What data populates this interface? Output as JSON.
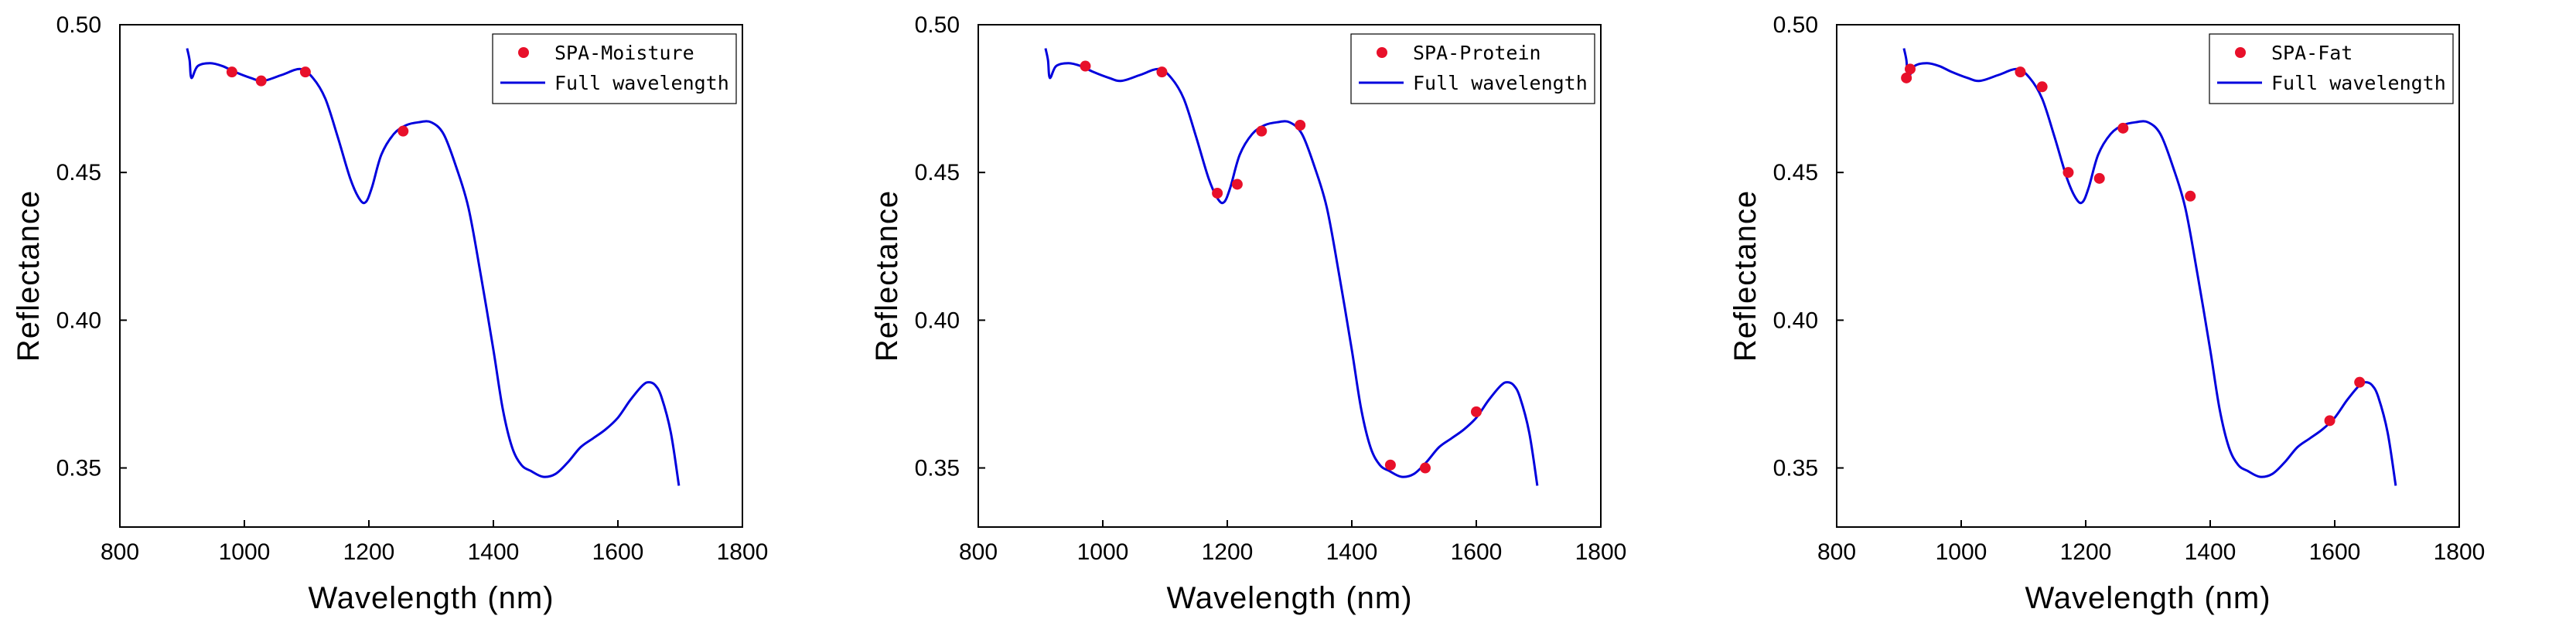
{
  "chart_data": [
    {
      "type": "line",
      "title": "",
      "xlabel": "Wavelength (nm)",
      "ylabel": "Reflectance",
      "xlim": [
        800,
        1800
      ],
      "ylim": [
        0.33,
        0.5
      ],
      "xticks": [
        800,
        1000,
        1200,
        1400,
        1600,
        1800
      ],
      "xtick_labels": [
        "800",
        "1000",
        "1200",
        "1400",
        "1600",
        "1800"
      ],
      "yticks": [
        0.35,
        0.4,
        0.45,
        0.5
      ],
      "ytick_labels": [
        "0.35",
        "0.40",
        "0.45",
        "0.50"
      ],
      "legend_position": "top-right",
      "series": [
        {
          "name": "Full wavelength",
          "kind": "line",
          "color": "#0000dd",
          "x": [
            908,
            912,
            915,
            925,
            945,
            965,
            985,
            1010,
            1030,
            1060,
            1090,
            1110,
            1130,
            1150,
            1170,
            1185,
            1195,
            1205,
            1220,
            1240,
            1260,
            1280,
            1300,
            1320,
            1340,
            1360,
            1380,
            1400,
            1415,
            1430,
            1445,
            1460,
            1480,
            1500,
            1520,
            1540,
            1560,
            1580,
            1600,
            1620,
            1640,
            1650,
            1660,
            1670,
            1685,
            1698
          ],
          "y": [
            0.492,
            0.488,
            0.482,
            0.486,
            0.487,
            0.486,
            0.484,
            0.482,
            0.481,
            0.483,
            0.485,
            0.482,
            0.475,
            0.462,
            0.448,
            0.441,
            0.44,
            0.445,
            0.456,
            0.463,
            0.466,
            0.467,
            0.467,
            0.463,
            0.452,
            0.438,
            0.415,
            0.39,
            0.37,
            0.357,
            0.351,
            0.349,
            0.347,
            0.348,
            0.352,
            0.357,
            0.36,
            0.363,
            0.367,
            0.373,
            0.378,
            0.379,
            0.378,
            0.374,
            0.362,
            0.344
          ]
        },
        {
          "name": "SPA-Moisture",
          "kind": "scatter",
          "color": "#e8102a",
          "x": [
            980,
            1027,
            1098,
            1255
          ],
          "y": [
            0.484,
            0.481,
            0.484,
            0.464
          ]
        }
      ]
    },
    {
      "type": "line",
      "title": "",
      "xlabel": "Wavelength (nm)",
      "ylabel": "Reflectance",
      "xlim": [
        800,
        1800
      ],
      "ylim": [
        0.33,
        0.5
      ],
      "xticks": [
        800,
        1000,
        1200,
        1400,
        1600,
        1800
      ],
      "xtick_labels": [
        "800",
        "1000",
        "1200",
        "1400",
        "1600",
        "1800"
      ],
      "yticks": [
        0.35,
        0.4,
        0.45,
        0.5
      ],
      "ytick_labels": [
        "0.35",
        "0.40",
        "0.45",
        "0.50"
      ],
      "legend_position": "top-right",
      "series": [
        {
          "name": "Full wavelength",
          "kind": "line",
          "color": "#0000dd",
          "x": [
            908,
            912,
            915,
            925,
            945,
            965,
            985,
            1010,
            1030,
            1060,
            1090,
            1110,
            1130,
            1150,
            1170,
            1185,
            1195,
            1205,
            1220,
            1240,
            1260,
            1280,
            1300,
            1320,
            1340,
            1360,
            1380,
            1400,
            1415,
            1430,
            1445,
            1460,
            1480,
            1500,
            1520,
            1540,
            1560,
            1580,
            1600,
            1620,
            1640,
            1650,
            1660,
            1670,
            1685,
            1698
          ],
          "y": [
            0.492,
            0.488,
            0.482,
            0.486,
            0.487,
            0.486,
            0.484,
            0.482,
            0.481,
            0.483,
            0.485,
            0.482,
            0.475,
            0.462,
            0.448,
            0.441,
            0.44,
            0.445,
            0.456,
            0.463,
            0.466,
            0.467,
            0.467,
            0.463,
            0.452,
            0.438,
            0.415,
            0.39,
            0.37,
            0.357,
            0.351,
            0.349,
            0.347,
            0.348,
            0.352,
            0.357,
            0.36,
            0.363,
            0.367,
            0.373,
            0.378,
            0.379,
            0.378,
            0.374,
            0.362,
            0.344
          ]
        },
        {
          "name": "SPA-Protein",
          "kind": "scatter",
          "color": "#e8102a",
          "x": [
            972,
            1095,
            1184,
            1216,
            1255,
            1317,
            1462,
            1518,
            1600
          ],
          "y": [
            0.486,
            0.484,
            0.443,
            0.446,
            0.464,
            0.466,
            0.351,
            0.35,
            0.369
          ]
        }
      ]
    },
    {
      "type": "line",
      "title": "",
      "xlabel": "Wavelength (nm)",
      "ylabel": "Reflectance",
      "xlim": [
        800,
        1800
      ],
      "ylim": [
        0.33,
        0.5
      ],
      "xticks": [
        800,
        1000,
        1200,
        1400,
        1600,
        1800
      ],
      "xtick_labels": [
        "800",
        "1000",
        "1200",
        "1400",
        "1600",
        "1800"
      ],
      "yticks": [
        0.35,
        0.4,
        0.45,
        0.5
      ],
      "ytick_labels": [
        "0.35",
        "0.40",
        "0.45",
        "0.50"
      ],
      "legend_position": "top-right",
      "series": [
        {
          "name": "Full wavelength",
          "kind": "line",
          "color": "#0000dd",
          "x": [
            908,
            912,
            915,
            925,
            945,
            965,
            985,
            1010,
            1030,
            1060,
            1090,
            1110,
            1130,
            1150,
            1170,
            1185,
            1195,
            1205,
            1220,
            1240,
            1260,
            1280,
            1300,
            1320,
            1340,
            1360,
            1380,
            1400,
            1415,
            1430,
            1445,
            1460,
            1480,
            1500,
            1520,
            1540,
            1560,
            1580,
            1600,
            1620,
            1640,
            1650,
            1660,
            1670,
            1685,
            1698
          ],
          "y": [
            0.492,
            0.488,
            0.482,
            0.486,
            0.487,
            0.486,
            0.484,
            0.482,
            0.481,
            0.483,
            0.485,
            0.482,
            0.475,
            0.462,
            0.448,
            0.441,
            0.44,
            0.445,
            0.456,
            0.463,
            0.466,
            0.467,
            0.467,
            0.463,
            0.452,
            0.438,
            0.415,
            0.39,
            0.37,
            0.357,
            0.351,
            0.349,
            0.347,
            0.348,
            0.352,
            0.357,
            0.36,
            0.363,
            0.367,
            0.373,
            0.378,
            0.379,
            0.378,
            0.374,
            0.362,
            0.344
          ]
        },
        {
          "name": "SPA-Fat",
          "kind": "scatter",
          "color": "#e8102a",
          "x": [
            912,
            918,
            1095,
            1130,
            1172,
            1222,
            1260,
            1368,
            1592,
            1640
          ],
          "y": [
            0.482,
            0.485,
            0.484,
            0.479,
            0.45,
            0.448,
            0.465,
            0.442,
            0.366,
            0.379
          ]
        }
      ]
    }
  ]
}
